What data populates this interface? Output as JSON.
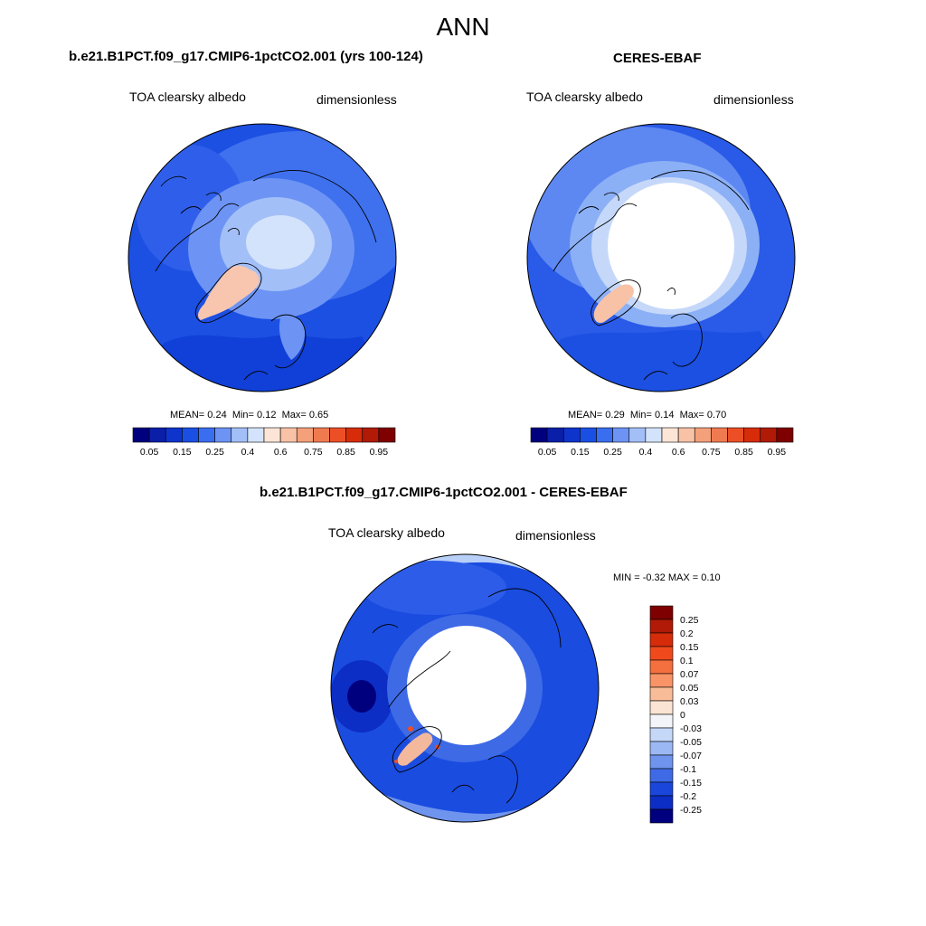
{
  "page": {
    "title": "ANN"
  },
  "panels": [
    {
      "title": "b.e21.B1PCT.f09_g17.CMIP6-1pctCO2.001 (yrs 100-124)",
      "left_label": "TOA clearsky albedo",
      "right_label": "dimensionless",
      "stats": {
        "mean_label": "MEAN=",
        "mean": "0.24",
        "min_label": "Min=",
        "min": "0.12",
        "max_label": "Max=",
        "max": "0.65"
      }
    },
    {
      "title": "CERES-EBAF",
      "left_label": "TOA clearsky albedo",
      "right_label": "dimensionless",
      "stats": {
        "mean_label": "MEAN=",
        "mean": "0.29",
        "min_label": "Min=",
        "min": "0.14",
        "max_label": "Max=",
        "max": "0.70"
      }
    },
    {
      "title": "b.e21.B1PCT.f09_g17.CMIP6-1pctCO2.001 - CERES-EBAF",
      "left_label": "TOA clearsky albedo",
      "right_label": "dimensionless",
      "stats": {
        "min_label": "MIN =",
        "min": "-0.32",
        "max_label": "MAX =",
        "max": "0.10"
      }
    }
  ],
  "colorbars": {
    "absolute": {
      "colors": [
        "#00007f",
        "#0a1fa8",
        "#0f34cc",
        "#1a4fe4",
        "#3a6ef0",
        "#6d94f4",
        "#a3bff8",
        "#d3e3fb",
        "#fce4d6",
        "#f8c2a6",
        "#f4a07a",
        "#f07a50",
        "#ec4f25",
        "#d62c0a",
        "#b01a06",
        "#7f0000"
      ],
      "tick_labels": [
        "0.05",
        "0.15",
        "0.25",
        "0.4",
        "0.6",
        "0.75",
        "0.85",
        "0.95"
      ]
    },
    "difference": {
      "colors": [
        "#7f0000",
        "#b01a06",
        "#d62c0a",
        "#f04a1c",
        "#f4703e",
        "#f89468",
        "#f8bc98",
        "#fce4d4",
        "#f2f4fa",
        "#c6d8f8",
        "#9cb8f4",
        "#6e94ee",
        "#3e6ae6",
        "#1a46dc",
        "#0c2ec4",
        "#00007f"
      ],
      "tick_labels": [
        "0.25",
        "0.2",
        "0.15",
        "0.1",
        "0.07",
        "0.05",
        "0.03",
        "0",
        "-0.03",
        "-0.05",
        "-0.07",
        "-0.1",
        "-0.15",
        "-0.2",
        "-0.25"
      ]
    }
  }
}
